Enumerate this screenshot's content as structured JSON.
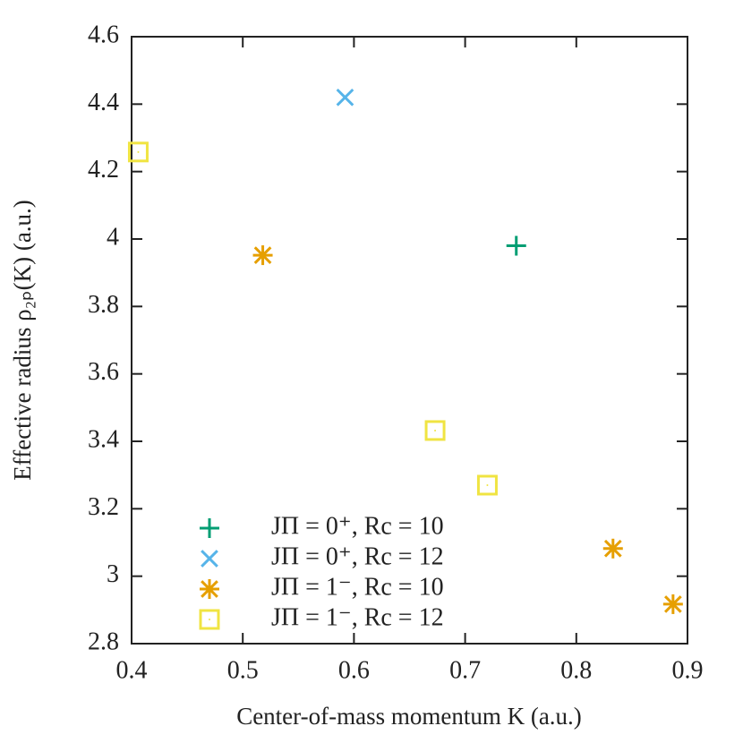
{
  "chart_data": {
    "type": "scatter",
    "xlabel": "Center-of-mass momentum K (a.u.)",
    "ylabel": "Effective radius ρ₂ₚ(K) (a.u.)",
    "xlim": [
      0.4,
      0.9
    ],
    "xticks": [
      0.4,
      0.5,
      0.6,
      0.7,
      0.8,
      0.9
    ],
    "ylim": [
      2.8,
      4.6
    ],
    "yticks": [
      2.8,
      3,
      3.2,
      3.4,
      3.6,
      3.8,
      4,
      4.2,
      4.4,
      4.6
    ],
    "legend": "lower left",
    "series": [
      {
        "name": "JΠ = 0⁺, Rc = 10",
        "color": "#009e73",
        "marker": "plus",
        "x": [
          0.746
        ],
        "values": [
          3.98
        ]
      },
      {
        "name": "JΠ = 0⁺, Rc = 12",
        "color": "#56b4e9",
        "marker": "cross",
        "x": [
          0.592
        ],
        "values": [
          4.42
        ]
      },
      {
        "name": "JΠ = 1⁻, Rc = 10",
        "color": "#e69f00",
        "marker": "star",
        "x": [
          0.518,
          0.833,
          0.887
        ],
        "values": [
          3.952,
          3.082,
          2.917
        ]
      },
      {
        "name": "JΠ = 1⁻, Rc = 12",
        "color": "#f0e442",
        "marker": "square",
        "x": [
          0.406,
          0.673,
          0.72
        ],
        "values": [
          4.258,
          3.432,
          3.27
        ]
      }
    ]
  }
}
